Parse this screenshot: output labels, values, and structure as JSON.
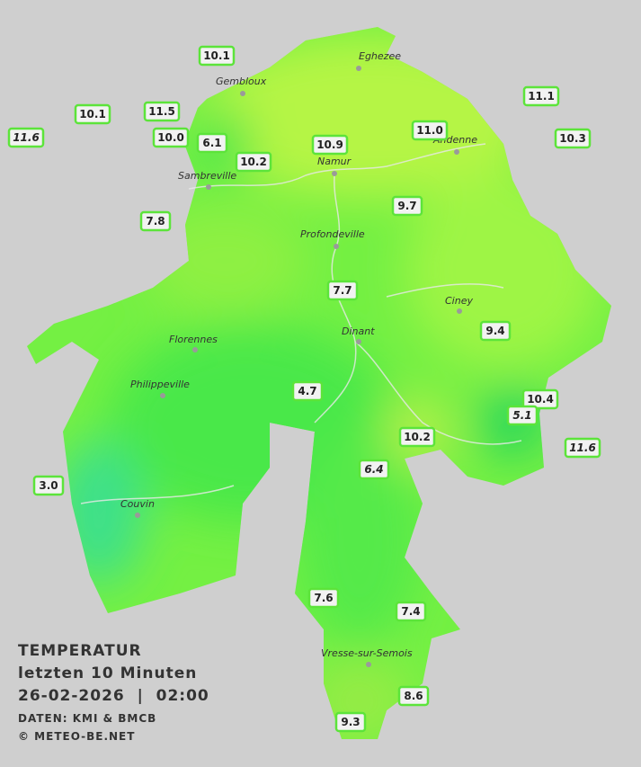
{
  "cities": [
    "Eghezee",
    "Gembloux",
    "Andenne",
    "Namur",
    "Sambreville",
    "Profondeville",
    "Ciney",
    "Dinant",
    "Florennes",
    "Philippeville",
    "Couvin",
    "Vresse-sur-Semois"
  ],
  "stations": [
    {
      "value": "10.1"
    },
    {
      "value": "10.1"
    },
    {
      "value": "11.5"
    },
    {
      "value": "11.6",
      "italic": true
    },
    {
      "value": "10.0"
    },
    {
      "value": "6.1"
    },
    {
      "value": "10.2"
    },
    {
      "value": "10.9"
    },
    {
      "value": "11.0"
    },
    {
      "value": "11.1"
    },
    {
      "value": "10.3"
    },
    {
      "value": "9.7"
    },
    {
      "value": "7.8"
    },
    {
      "value": "7.7"
    },
    {
      "value": "9.4"
    },
    {
      "value": "4.7"
    },
    {
      "value": "10.4"
    },
    {
      "value": "5.1",
      "italic": true
    },
    {
      "value": "10.2"
    },
    {
      "value": "11.6",
      "italic": true
    },
    {
      "value": "6.4",
      "italic": true
    },
    {
      "value": "3.0"
    },
    {
      "value": "7.6"
    },
    {
      "value": "7.4"
    },
    {
      "value": "8.6"
    },
    {
      "value": "9.3"
    }
  ],
  "legend": {
    "title": "TEMPERATUR",
    "period": "letzten 10 Minuten",
    "datetime": "26-02-2026  |  02:00",
    "source": "DATEN: KMI & BMCB",
    "copyright": "© METEO-BE.NET"
  }
}
